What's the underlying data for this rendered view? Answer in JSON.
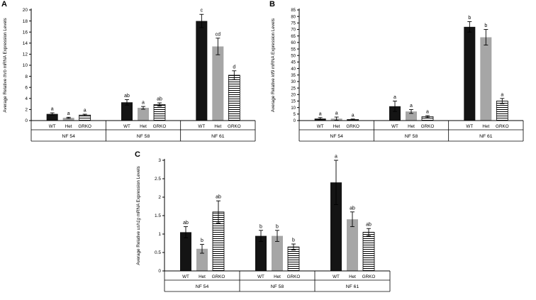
{
  "figure": {
    "background": "#ffffff",
    "panel_labels": [
      "A",
      "B",
      "C"
    ]
  },
  "colors": {
    "wt_bar": "#141414",
    "het_bar": "#a6a6a6",
    "stripe": "#000000",
    "axis": "#000000",
    "text": "#000000",
    "background": "#ffffff"
  },
  "chart_data": [
    {
      "type": "bar",
      "panel_label": "A",
      "ylabel_prefix": "Average Relative ",
      "ylabel_gene": "thrb",
      "ylabel_suffix": " mRNA Expression Levels",
      "ylim": [
        0,
        20
      ],
      "ytick_step": 2,
      "grid": false,
      "legend_position": "none",
      "categories": [
        "WT",
        "Het",
        "GRKO"
      ],
      "bar_styles": [
        "solid-black",
        "solid-gray",
        "h-stripes"
      ],
      "groups": [
        {
          "label": "NF 54",
          "values": [
            1.2,
            0.5,
            1.0
          ],
          "errors": [
            0.2,
            0.1,
            0.15
          ],
          "letters": [
            "a",
            "a",
            "a"
          ]
        },
        {
          "label": "NF 58",
          "values": [
            3.3,
            2.3,
            2.9
          ],
          "errors": [
            0.5,
            0.25,
            0.3
          ],
          "letters": [
            "ab",
            "a",
            "ab"
          ]
        },
        {
          "label": "NF 61",
          "values": [
            18.0,
            13.4,
            8.2
          ],
          "errors": [
            1.2,
            1.5,
            0.8
          ],
          "letters": [
            "c",
            "cd",
            "d"
          ]
        }
      ]
    },
    {
      "type": "bar",
      "panel_label": "B",
      "ylabel_prefix": "Average Relative ",
      "ylabel_gene": "klf9",
      "ylabel_suffix": " mRNA Expression Levels",
      "ylim": [
        0,
        85
      ],
      "ytick_step": 5,
      "grid": false,
      "legend_position": "none",
      "categories": [
        "WT",
        "Het",
        "GRKO"
      ],
      "bar_styles": [
        "solid-black",
        "solid-gray",
        "h-stripes"
      ],
      "groups": [
        {
          "label": "NF 54",
          "values": [
            1.5,
            1.5,
            0.8
          ],
          "errors": [
            0.8,
            1.2,
            0.4
          ],
          "letters": [
            "a",
            "a",
            "a"
          ]
        },
        {
          "label": "NF 58",
          "values": [
            11.0,
            7.0,
            3.0
          ],
          "errors": [
            4.0,
            1.5,
            0.8
          ],
          "letters": [
            "a",
            "a",
            "a"
          ]
        },
        {
          "label": "NF 61",
          "values": [
            72.0,
            64.0,
            15.0
          ],
          "errors": [
            4.0,
            6.0,
            2.0
          ],
          "letters": [
            "b",
            "b",
            "a"
          ]
        }
      ]
    },
    {
      "type": "bar",
      "panel_label": "C",
      "ylabel_prefix": "Average Relative ",
      "ylabel_gene": "ush1g",
      "ylabel_suffix": " mRNA Expression Levels",
      "ylim": [
        0,
        3
      ],
      "ytick_step": 0.5,
      "grid": false,
      "legend_position": "none",
      "categories": [
        "WT",
        "Het",
        "GRKO"
      ],
      "bar_styles": [
        "solid-black",
        "solid-gray",
        "h-stripes"
      ],
      "groups": [
        {
          "label": "NF 54",
          "values": [
            1.05,
            0.6,
            1.6
          ],
          "errors": [
            0.15,
            0.12,
            0.3
          ],
          "letters": [
            "ab",
            "b",
            "ab"
          ]
        },
        {
          "label": "NF 58",
          "values": [
            0.95,
            0.95,
            0.65
          ],
          "errors": [
            0.15,
            0.15,
            0.08
          ],
          "letters": [
            "b",
            "b",
            "b"
          ]
        },
        {
          "label": "NF 61",
          "values": [
            2.4,
            1.4,
            1.05
          ],
          "errors": [
            0.6,
            0.2,
            0.1
          ],
          "letters": [
            "a",
            "ab",
            "ab"
          ]
        }
      ]
    }
  ]
}
